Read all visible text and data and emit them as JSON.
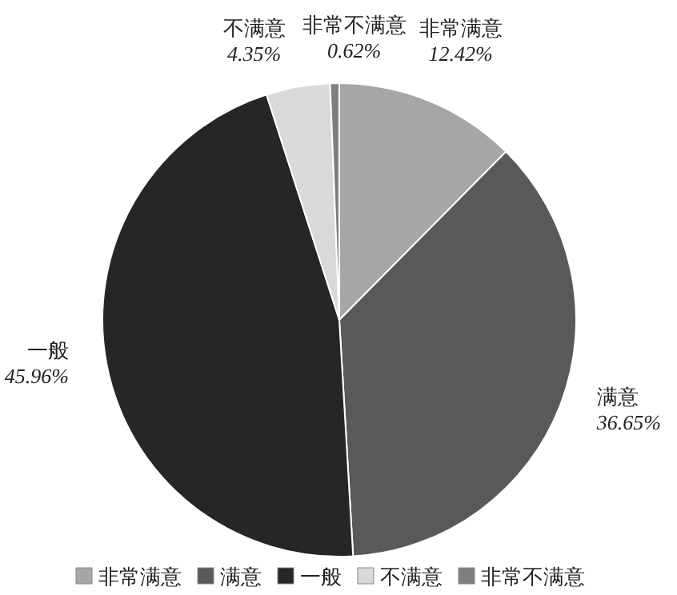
{
  "chart_data": {
    "type": "pie",
    "categories": [
      "非常满意",
      "满意",
      "一般",
      "不满意",
      "非常不满意"
    ],
    "values": [
      12.42,
      36.65,
      45.96,
      4.35,
      0.62
    ],
    "colors": [
      "#a6a6a6",
      "#595959",
      "#262626",
      "#d9d9d9",
      "#7f7f7f"
    ],
    "value_labels": [
      "12.42%",
      "36.65%",
      "45.96%",
      "4.35%",
      "0.62%"
    ],
    "legend": "bottom"
  }
}
